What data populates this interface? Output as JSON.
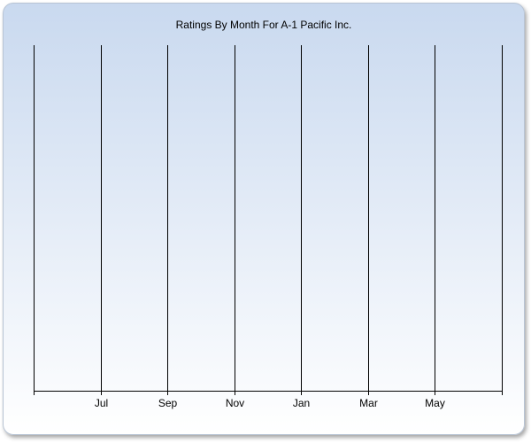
{
  "chart_data": {
    "type": "line",
    "title": "Ratings By Month For A-1 Pacific Inc.",
    "categories": [
      null,
      "Jul",
      "Sep",
      "Nov",
      "Jan",
      "Mar",
      "May",
      null
    ],
    "grid": true,
    "grid_color": "#000000"
  }
}
